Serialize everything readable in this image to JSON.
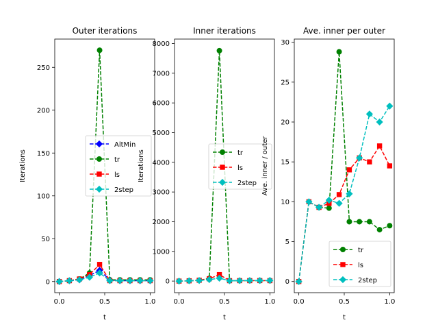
{
  "chart_data": [
    {
      "type": "line",
      "title": "Outer iterations",
      "xlabel": "t",
      "ylabel": "Iterations",
      "xlim": [
        -0.05,
        1.05
      ],
      "ylim": [
        -13,
        283
      ],
      "xticks": [
        "0.0",
        "0.5",
        "1.0"
      ],
      "yticks": [
        "0",
        "50",
        "100",
        "150",
        "200",
        "250"
      ],
      "legend_position": "center-right",
      "series": [
        {
          "name": "AltMin",
          "color": "#0000ff",
          "marker": "diamond",
          "x": [
            0.0,
            0.111,
            0.222,
            0.333,
            0.444,
            0.556,
            0.667,
            0.778,
            0.889,
            1.0
          ],
          "y": [
            0,
            1,
            2,
            7,
            13,
            2,
            1,
            1,
            1,
            1
          ]
        },
        {
          "name": "tr",
          "color": "#008000",
          "marker": "circle",
          "x": [
            0.0,
            0.111,
            0.222,
            0.333,
            0.444,
            0.556,
            0.667,
            0.778,
            0.889,
            1.0
          ],
          "y": [
            0,
            1,
            3,
            10,
            270,
            2,
            2,
            2,
            2,
            2
          ]
        },
        {
          "name": "ls",
          "color": "#ff0000",
          "marker": "square",
          "x": [
            0.0,
            0.111,
            0.222,
            0.333,
            0.444,
            0.556,
            0.667,
            0.778,
            0.889,
            1.0
          ],
          "y": [
            0,
            1,
            3,
            8,
            20,
            1,
            1,
            1,
            1,
            1
          ]
        },
        {
          "name": "2step",
          "color": "#00bfbf",
          "marker": "diamond",
          "x": [
            0.0,
            0.111,
            0.222,
            0.333,
            0.444,
            0.556,
            0.667,
            0.778,
            0.889,
            1.0
          ],
          "y": [
            0,
            1,
            2,
            5,
            10,
            1,
            1,
            1,
            1,
            1
          ]
        }
      ]
    },
    {
      "type": "line",
      "title": "Inner iterations",
      "xlabel": "t",
      "ylabel": "Iterations",
      "xlim": [
        -0.05,
        1.05
      ],
      "ylim": [
        -390,
        8150
      ],
      "xticks": [
        "0.0",
        "0.5",
        "1.0"
      ],
      "yticks": [
        "0",
        "1000",
        "2000",
        "3000",
        "4000",
        "5000",
        "6000",
        "7000",
        "8000"
      ],
      "legend_position": "center-right",
      "series": [
        {
          "name": "tr",
          "color": "#008000",
          "marker": "circle",
          "x": [
            0.0,
            0.111,
            0.222,
            0.333,
            0.444,
            0.556,
            0.667,
            0.778,
            0.889,
            1.0
          ],
          "y": [
            0,
            10,
            28,
            92,
            7760,
            15,
            15,
            15,
            13,
            14
          ]
        },
        {
          "name": "ls",
          "color": "#ff0000",
          "marker": "square",
          "x": [
            0.0,
            0.111,
            0.222,
            0.333,
            0.444,
            0.556,
            0.667,
            0.778,
            0.889,
            1.0
          ],
          "y": [
            0,
            10,
            28,
            78,
            218,
            14,
            15,
            15,
            17,
            15
          ]
        },
        {
          "name": "2step",
          "color": "#00bfbf",
          "marker": "diamond",
          "x": [
            0.0,
            0.111,
            0.222,
            0.333,
            0.444,
            0.556,
            0.667,
            0.778,
            0.889,
            1.0
          ],
          "y": [
            0,
            10,
            19,
            51,
            98,
            11,
            15,
            21,
            20,
            22
          ]
        }
      ]
    },
    {
      "type": "line",
      "title": "Ave. inner per outer",
      "xlabel": "t",
      "ylabel": "Ave. inner / outer",
      "xlim": [
        -0.05,
        1.05
      ],
      "ylim": [
        -1.4,
        30.4
      ],
      "xticks": [
        "0.0",
        "0.5",
        "1.0"
      ],
      "yticks": [
        "0",
        "5",
        "10",
        "15",
        "20",
        "25",
        "30"
      ],
      "legend_position": "lower-right",
      "series": [
        {
          "name": "tr",
          "color": "#008000",
          "marker": "circle",
          "x": [
            0.0,
            0.111,
            0.222,
            0.333,
            0.444,
            0.556,
            0.667,
            0.778,
            0.889,
            1.0
          ],
          "y": [
            0,
            10,
            9.3,
            9.2,
            28.8,
            7.5,
            7.5,
            7.5,
            6.5,
            7
          ]
        },
        {
          "name": "ls",
          "color": "#ff0000",
          "marker": "square",
          "x": [
            0.0,
            0.111,
            0.222,
            0.333,
            0.444,
            0.556,
            0.667,
            0.778,
            0.889,
            1.0
          ],
          "y": [
            0,
            10,
            9.3,
            9.8,
            10.9,
            14,
            15.5,
            15,
            17,
            14.5
          ]
        },
        {
          "name": "2step",
          "color": "#00bfbf",
          "marker": "diamond",
          "x": [
            0.0,
            0.111,
            0.222,
            0.333,
            0.444,
            0.556,
            0.667,
            0.778,
            0.889,
            1.0
          ],
          "y": [
            0,
            10,
            9.3,
            10.2,
            9.8,
            11,
            15.5,
            21,
            20,
            22
          ]
        }
      ]
    }
  ]
}
